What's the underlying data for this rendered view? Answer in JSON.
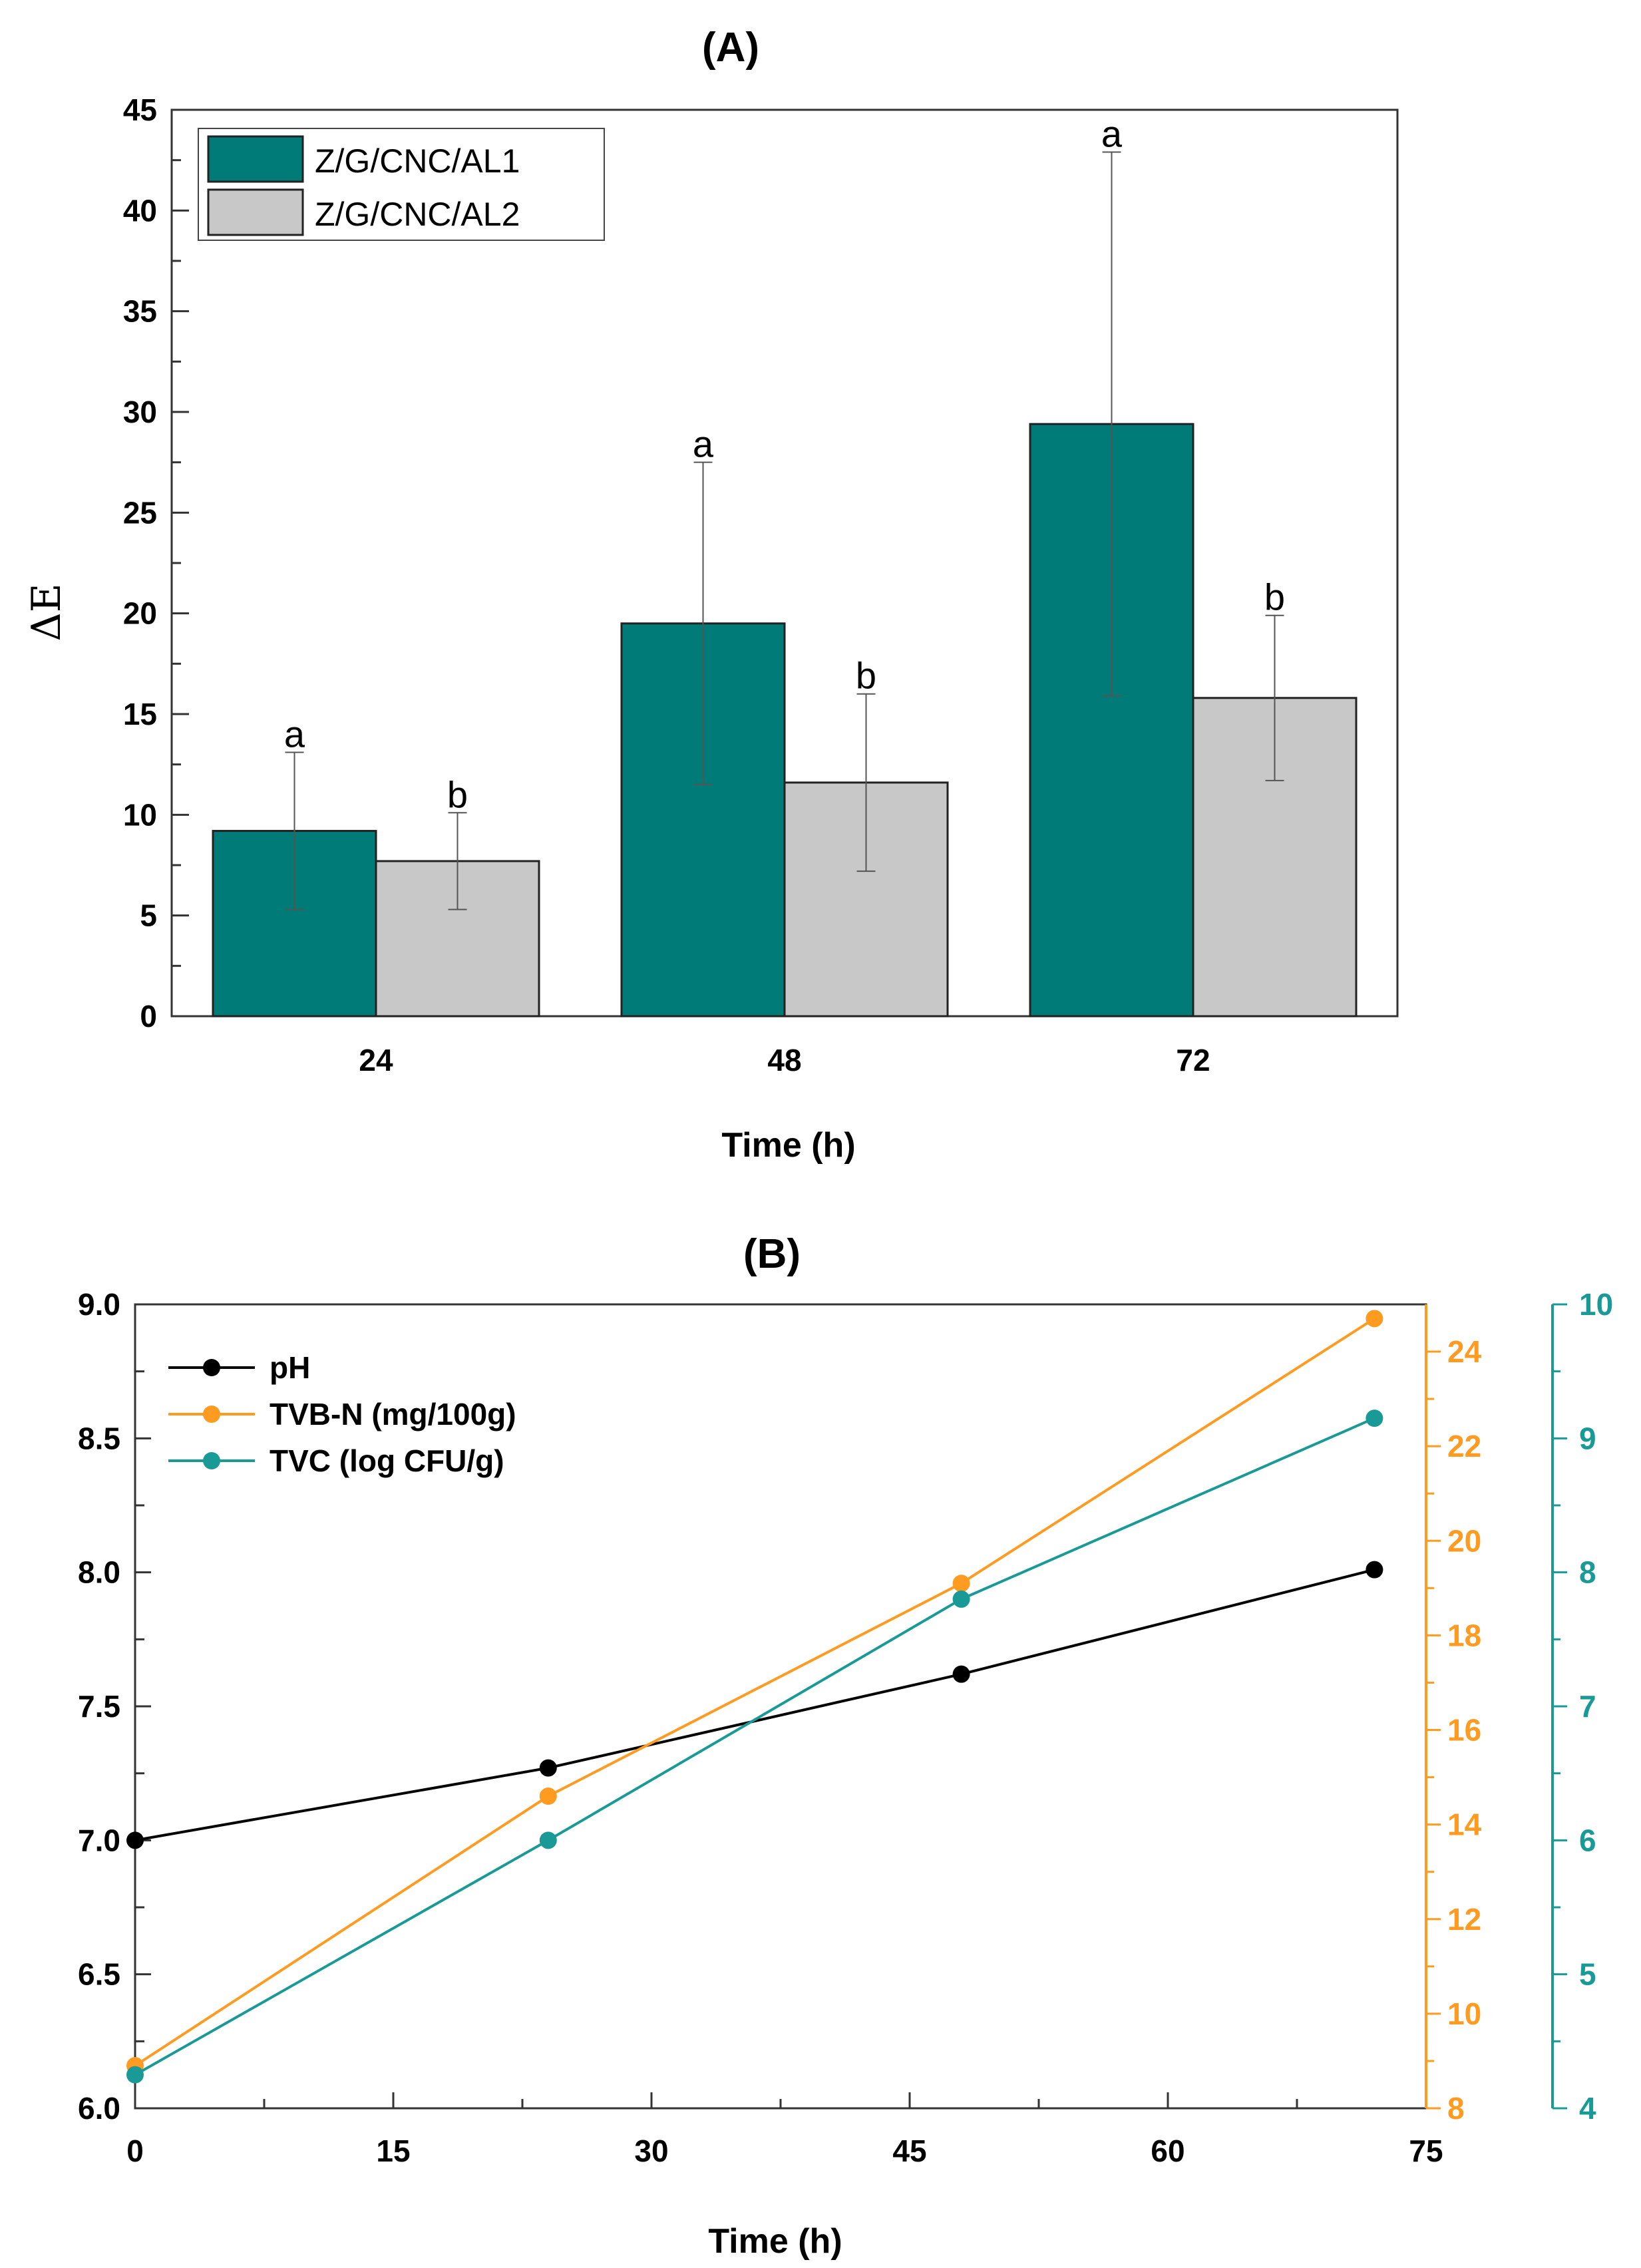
{
  "chart_data": [
    {
      "panel": "(A)",
      "type": "bar",
      "title": "(A)",
      "xlabel": "Time (h)",
      "ylabel": "ΔE",
      "ylim": [
        0,
        45
      ],
      "yticks": [
        0,
        5,
        10,
        15,
        20,
        25,
        30,
        35,
        40,
        45
      ],
      "categories": [
        "24",
        "48",
        "72"
      ],
      "legend_position": "top-left",
      "series": [
        {
          "name": "Z/G/CNC/AL1",
          "color": "#007b78",
          "values": [
            9.2,
            19.5,
            29.4
          ],
          "errors": [
            3.9,
            8.0,
            13.5
          ],
          "letters": [
            "a",
            "a",
            "a"
          ]
        },
        {
          "name": "Z/G/CNC/AL2",
          "color": "#c8c8c8",
          "values": [
            7.7,
            11.6,
            15.8
          ],
          "errors": [
            2.4,
            4.4,
            4.1
          ],
          "letters": [
            "b",
            "b",
            "b"
          ]
        }
      ]
    },
    {
      "panel": "(B)",
      "type": "line",
      "title": "(B)",
      "xlabel": "Time (h)",
      "xlim": [
        0,
        75
      ],
      "xticks": [
        0,
        15,
        30,
        45,
        60,
        75
      ],
      "x": [
        0,
        24,
        48,
        72
      ],
      "legend_position": "top-left",
      "axes": [
        {
          "id": "left",
          "ylim": [
            6.0,
            9.0
          ],
          "ticks": [
            "6.0",
            "6.5",
            "7.0",
            "7.5",
            "8.0",
            "8.5",
            "9.0"
          ],
          "color": "#000000"
        },
        {
          "id": "right1",
          "ylim": [
            8,
            25
          ],
          "ticks": [
            "8",
            "10",
            "12",
            "14",
            "16",
            "18",
            "20",
            "22",
            "24"
          ],
          "color": "#ff9b21"
        },
        {
          "id": "right2",
          "ylim": [
            4,
            10
          ],
          "ticks": [
            "4",
            "5",
            "6",
            "7",
            "8",
            "9",
            "10"
          ],
          "color": "#1a9a96"
        }
      ],
      "series": [
        {
          "name": "pH",
          "axis": "left",
          "color": "#000000",
          "values": [
            7.0,
            7.27,
            7.62,
            8.01
          ]
        },
        {
          "name": "TVB-N (mg/100g)",
          "axis": "right1",
          "color": "#ff9b21",
          "values": [
            8.9,
            14.6,
            19.1,
            24.7
          ]
        },
        {
          "name": "TVC (log CFU/g)",
          "axis": "right2",
          "color": "#1a9a96",
          "values": [
            4.25,
            6.0,
            7.8,
            9.15
          ]
        }
      ]
    }
  ]
}
